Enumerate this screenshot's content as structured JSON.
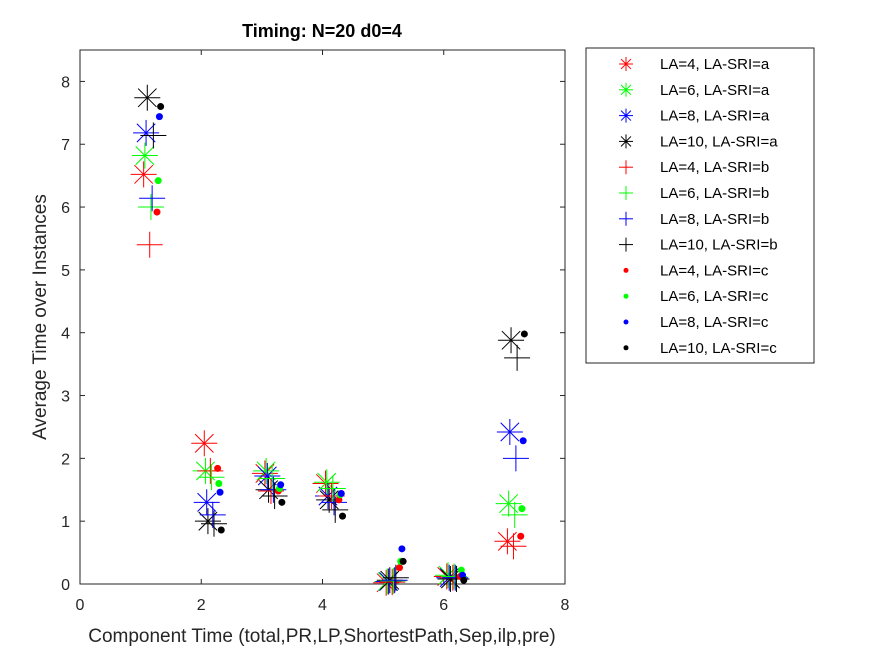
{
  "chart_data": {
    "type": "scatter",
    "title": "Timing:  N=20 d0=4",
    "xlabel": "Component Time (total,PR,LP,ShortestPath,Sep,ilp,pre)",
    "ylabel": "Average Time over Instances",
    "xlim": [
      0,
      8
    ],
    "ylim": [
      0,
      8.5
    ],
    "xticks": [
      "0",
      "2",
      "4",
      "6",
      "8"
    ],
    "yticks": [
      "0",
      "1",
      "2",
      "3",
      "4",
      "5",
      "6",
      "7",
      "8"
    ],
    "legend_position": "outside top-right",
    "colors": {
      "LA=4": "#ff0000",
      "LA=6": "#00ff00",
      "LA=8": "#0000ff",
      "LA=10": "#000000"
    },
    "series": [
      {
        "name": "LA=4, LA-SRI=a",
        "marker": "asterisk",
        "color": "#ff0000",
        "x": [
          1.05,
          2.05,
          3.05,
          4.05,
          5.05,
          6.05,
          7.05
        ],
        "y": [
          6.52,
          2.24,
          1.76,
          1.6,
          0.02,
          0.12,
          0.68
        ]
      },
      {
        "name": "LA=6, LA-SRI=a",
        "marker": "asterisk",
        "color": "#00ff00",
        "x": [
          1.07,
          2.07,
          3.07,
          4.07,
          5.07,
          6.07,
          7.07
        ],
        "y": [
          6.82,
          1.8,
          1.8,
          1.62,
          0.04,
          0.14,
          1.28
        ]
      },
      {
        "name": "LA=8, LA-SRI=a",
        "marker": "asterisk",
        "color": "#0000ff",
        "x": [
          1.09,
          2.09,
          3.09,
          4.09,
          5.09,
          6.09,
          7.09
        ],
        "y": [
          7.18,
          1.3,
          1.72,
          1.4,
          0.04,
          0.1,
          2.42
        ]
      },
      {
        "name": "LA=10, LA-SRI=a",
        "marker": "asterisk",
        "color": "#000000",
        "x": [
          1.11,
          2.11,
          3.11,
          4.11,
          5.11,
          6.11,
          7.11
        ],
        "y": [
          7.74,
          1.0,
          1.5,
          1.34,
          0.06,
          0.08,
          3.88
        ]
      },
      {
        "name": "LA=4, LA-SRI=b",
        "marker": "plus",
        "color": "#ff0000",
        "x": [
          1.15,
          2.15,
          3.15,
          4.15,
          5.15,
          6.15,
          7.15
        ],
        "y": [
          5.4,
          1.8,
          1.48,
          1.4,
          0.03,
          0.1,
          0.6
        ]
      },
      {
        "name": "LA=6, LA-SRI=b",
        "marker": "plus",
        "color": "#00ff00",
        "x": [
          1.17,
          2.17,
          3.17,
          4.17,
          5.17,
          6.17,
          7.17
        ],
        "y": [
          6.0,
          1.7,
          1.68,
          1.52,
          0.05,
          0.12,
          1.1
        ]
      },
      {
        "name": "LA=8, LA-SRI=b",
        "marker": "plus",
        "color": "#0000ff",
        "x": [
          1.19,
          2.19,
          3.19,
          4.19,
          5.19,
          6.19,
          7.19
        ],
        "y": [
          6.14,
          1.1,
          1.5,
          1.3,
          0.06,
          0.1,
          2.0
        ]
      },
      {
        "name": "LA=10, LA-SRI=b",
        "marker": "plus",
        "color": "#000000",
        "x": [
          1.21,
          2.21,
          3.21,
          4.21,
          5.21,
          6.21,
          7.21
        ],
        "y": [
          7.14,
          0.96,
          1.4,
          1.18,
          0.1,
          0.08,
          3.6
        ]
      },
      {
        "name": "LA=4, LA-SRI=c",
        "marker": "dot",
        "color": "#ff0000",
        "x": [
          1.27,
          2.27,
          3.27,
          4.27,
          5.27,
          6.27,
          7.27
        ],
        "y": [
          5.92,
          1.84,
          1.48,
          1.34,
          0.26,
          0.12,
          0.76
        ]
      },
      {
        "name": "LA=6, LA-SRI=c",
        "marker": "dot",
        "color": "#00ff00",
        "x": [
          1.29,
          2.29,
          3.29,
          4.29,
          5.29,
          6.29,
          7.29
        ],
        "y": [
          6.42,
          1.6,
          1.52,
          1.42,
          0.36,
          0.22,
          1.2
        ]
      },
      {
        "name": "LA=8, LA-SRI=c",
        "marker": "dot",
        "color": "#0000ff",
        "x": [
          1.31,
          2.31,
          3.31,
          4.31,
          5.31,
          6.31,
          7.31
        ],
        "y": [
          7.44,
          1.46,
          1.58,
          1.44,
          0.56,
          0.14,
          2.28
        ]
      },
      {
        "name": "LA=10, LA-SRI=c",
        "marker": "dot",
        "color": "#000000",
        "x": [
          1.33,
          2.33,
          3.33,
          4.33,
          5.33,
          6.33,
          7.33
        ],
        "y": [
          7.6,
          0.86,
          1.3,
          1.08,
          0.36,
          0.06,
          3.98
        ]
      }
    ]
  }
}
